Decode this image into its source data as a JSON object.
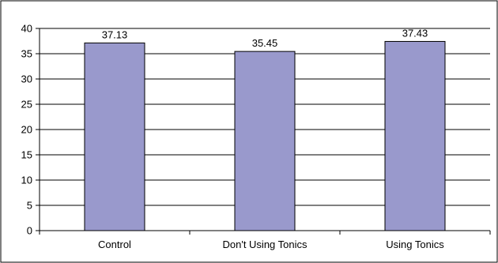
{
  "chart_data": {
    "type": "bar",
    "title": "",
    "xlabel": "",
    "ylabel": "",
    "categories": [
      "Control",
      "Don't Using Tonics",
      "Using Tonics"
    ],
    "values": [
      37.13,
      35.45,
      37.43
    ],
    "value_labels": [
      "37.13",
      "35.45",
      "37.43"
    ],
    "ylim": [
      0,
      40
    ],
    "yticks": [
      0,
      5,
      10,
      15,
      20,
      25,
      30,
      35,
      40
    ],
    "grid": true,
    "legend": "none",
    "colors": {
      "bar_fill": "#9999cc",
      "bar_stroke": "#000000",
      "grid": "#000000",
      "border": "#000000"
    }
  }
}
